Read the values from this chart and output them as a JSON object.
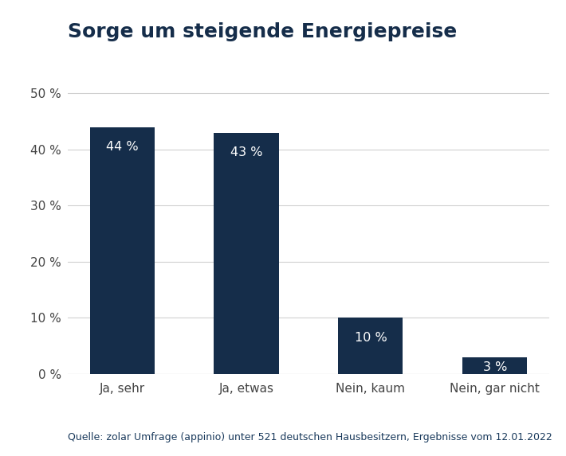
{
  "title": "Sorge um steigende Energiepreise",
  "categories": [
    "Ja, sehr",
    "Ja, etwas",
    "Nein, kaum",
    "Nein, gar nicht"
  ],
  "values": [
    44,
    43,
    10,
    3
  ],
  "bar_color": "#152d4a",
  "label_color": "#ffffff",
  "label_fontsize": 11.5,
  "title_fontsize": 18,
  "title_color": "#152d4a",
  "ylabel_ticks": [
    0,
    10,
    20,
    30,
    40,
    50
  ],
  "ylim": [
    0,
    52
  ],
  "background_color": "#ffffff",
  "source_text": "Quelle: zolar Umfrage (appinio) unter 521 deutschen Hausbesitzern, Ergebnisse vom 12.01.2022",
  "source_fontsize": 9,
  "source_color": "#1a3a5c",
  "grid_color": "#d0d0d0",
  "tick_label_color": "#444444",
  "tick_fontsize": 11,
  "bar_width": 0.52
}
